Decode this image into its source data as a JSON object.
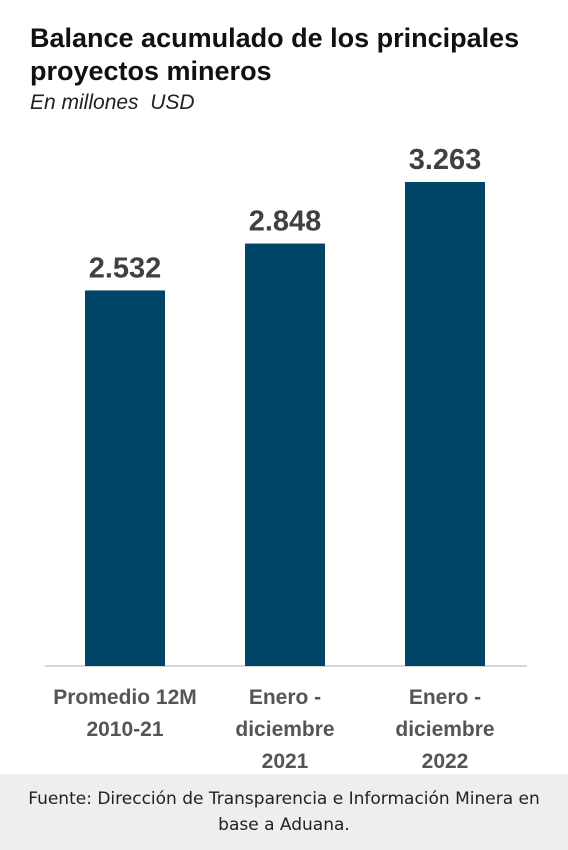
{
  "chart_data": {
    "type": "bar",
    "title": "Balance acumulado de los principales proyectos mineros",
    "subtitle": "En millones  USD",
    "categories": [
      [
        "Promedio 12M",
        "2010-21"
      ],
      [
        "Enero -",
        "diciembre",
        "2021"
      ],
      [
        "Enero -",
        "diciembre",
        "2022"
      ]
    ],
    "values": [
      2532,
      2848,
      3263
    ],
    "value_labels": [
      "2.532",
      "2.848",
      "3.263"
    ],
    "xlabel": "",
    "ylabel": "",
    "ylim": [
      0,
      3263
    ],
    "grid": false,
    "legend": "none",
    "colors": {
      "bar": "#004566",
      "value_label": "#404040",
      "category_label": "#555555",
      "footer_background": "#eeeeee"
    }
  },
  "footer": {
    "source": "Fuente: Dirección de Transparencia e Información Minera en base a Aduana."
  }
}
